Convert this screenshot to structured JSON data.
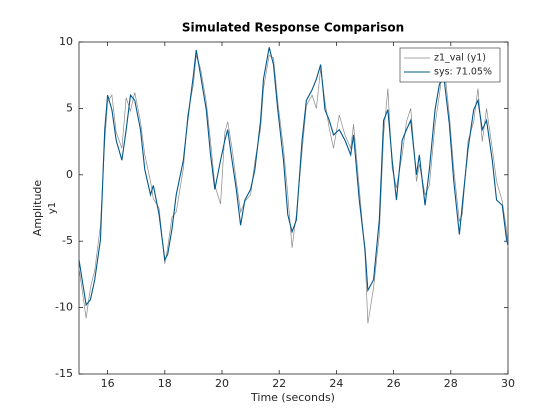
{
  "chart_data": {
    "type": "line",
    "title": "Simulated Response Comparison",
    "xlabel": "Time (seconds)",
    "ylabel": "Amplitude",
    "output_name": "y1",
    "x": [
      15.0,
      15.25,
      15.4,
      15.55,
      15.75,
      15.9,
      16.0,
      16.15,
      16.3,
      16.5,
      16.65,
      16.8,
      16.95,
      17.15,
      17.3,
      17.5,
      17.6,
      17.8,
      18.0,
      18.1,
      18.25,
      18.4,
      18.65,
      18.8,
      19.0,
      19.1,
      19.25,
      19.45,
      19.6,
      19.75,
      19.95,
      20.1,
      20.2,
      20.35,
      20.5,
      20.65,
      20.8,
      21.0,
      21.15,
      21.35,
      21.45,
      21.65,
      21.8,
      21.95,
      22.15,
      22.3,
      22.45,
      22.6,
      22.8,
      22.95,
      23.15,
      23.3,
      23.45,
      23.6,
      23.75,
      23.9,
      24.1,
      24.3,
      24.5,
      24.6,
      24.8,
      25.0,
      25.1,
      25.3,
      25.5,
      25.65,
      25.8,
      25.95,
      26.1,
      26.3,
      26.45,
      26.6,
      26.8,
      26.9,
      27.1,
      27.25,
      27.45,
      27.6,
      27.75,
      27.95,
      28.1,
      28.3,
      28.4,
      28.6,
      28.8,
      28.95,
      29.1,
      29.25,
      29.45,
      29.6,
      29.8,
      29.95,
      30.0
    ],
    "series": [
      {
        "name": "z1_val (y1)",
        "color": "#8a8a8a",
        "values": [
          -7.0,
          -10.8,
          -8.5,
          -7.2,
          -3.8,
          2.5,
          5.5,
          6.0,
          3.2,
          2.0,
          5.8,
          4.8,
          6.2,
          4.0,
          1.5,
          -0.5,
          -1.8,
          -2.5,
          -6.7,
          -5.5,
          -3.2,
          -2.8,
          0.5,
          4.5,
          6.8,
          9.0,
          8.0,
          5.5,
          2.5,
          -0.8,
          -2.2,
          3.2,
          4.0,
          2.0,
          -0.5,
          -2.8,
          -2.0,
          -1.5,
          1.0,
          3.5,
          6.5,
          9.0,
          8.8,
          5.5,
          2.0,
          -1.5,
          -5.5,
          -3.0,
          1.8,
          5.2,
          6.0,
          5.0,
          8.0,
          5.5,
          3.5,
          2.0,
          4.5,
          3.0,
          2.0,
          3.8,
          -1.0,
          -6.0,
          -11.2,
          -8.5,
          -4.5,
          3.0,
          6.5,
          0.5,
          -1.0,
          1.5,
          4.0,
          5.0,
          -0.5,
          0.8,
          -1.5,
          -0.8,
          3.8,
          6.0,
          8.5,
          4.5,
          0.5,
          -3.5,
          -3.0,
          2.5,
          4.0,
          6.5,
          2.5,
          5.0,
          2.0,
          -0.5,
          -2.0,
          -4.2,
          -5.5
        ]
      },
      {
        "name": "sys: 71.05%",
        "color": "#00578a",
        "values": [
          -6.4,
          -9.8,
          -9.4,
          -7.9,
          -4.9,
          3.4,
          6.0,
          4.9,
          2.6,
          1.1,
          3.4,
          6.0,
          5.6,
          3.4,
          0.4,
          -1.5,
          -0.8,
          -3.0,
          -6.4,
          -6.0,
          -4.1,
          -1.5,
          1.1,
          4.1,
          7.5,
          9.4,
          7.5,
          4.9,
          1.5,
          -1.1,
          1.1,
          2.6,
          3.4,
          1.1,
          -1.1,
          -3.8,
          -1.9,
          -1.1,
          0.4,
          4.1,
          7.2,
          9.6,
          8.3,
          4.9,
          1.1,
          -3.0,
          -4.3,
          -3.4,
          2.6,
          5.6,
          6.4,
          7.2,
          8.3,
          4.9,
          4.1,
          3.0,
          3.4,
          2.6,
          1.5,
          3.0,
          -1.9,
          -5.6,
          -8.7,
          -7.9,
          -3.4,
          4.1,
          4.9,
          1.1,
          -1.9,
          2.6,
          3.4,
          4.1,
          0,
          1.5,
          -2.3,
          0.4,
          4.9,
          6.8,
          7.5,
          3.8,
          -0.4,
          -4.5,
          -2.3,
          1.9,
          4.9,
          5.6,
          3.4,
          4.1,
          1.1,
          -1.9,
          -2.3,
          -4.9,
          -5.3
        ]
      }
    ],
    "xlim": [
      15,
      30
    ],
    "xticks": [
      16,
      18,
      20,
      22,
      24,
      26,
      28,
      30
    ],
    "ylim": [
      -15,
      10
    ],
    "yticks": [
      -15,
      -10,
      -5,
      0,
      5,
      10
    ],
    "grid": false,
    "legend": "top-right"
  }
}
